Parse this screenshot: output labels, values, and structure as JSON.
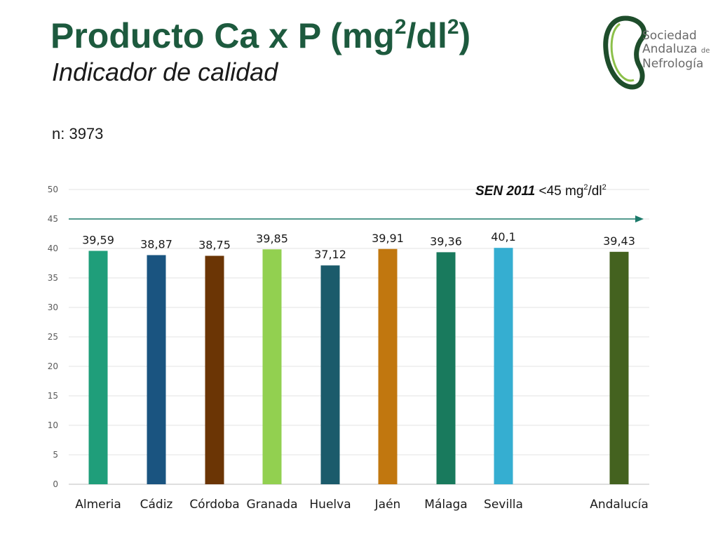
{
  "header": {
    "title_main": "Producto Ca x P (mg",
    "title_sup1": "2",
    "title_mid": "/dl",
    "title_sup2": "2",
    "title_end": ")",
    "subtitle": "Indicador de calidad",
    "n_count": "n: 3973"
  },
  "logo": {
    "line1": "Sociedad",
    "line2": "Andaluza",
    "line2_de": "de",
    "line3": "Nefrología",
    "colors": {
      "dark": "#1e4d2b",
      "light": "#8cc04a"
    }
  },
  "reference": {
    "label_bold": "SEN 2011",
    "label_text": "<45 mg",
    "sup1": "2",
    "mid": "/dl",
    "sup2": "2",
    "value": 45,
    "color": "#1b7a6a"
  },
  "chart_data": {
    "type": "bar",
    "title": "Producto Ca x P (mg2/dl2)",
    "xlabel": "",
    "ylabel": "",
    "ylim": [
      0,
      50
    ],
    "yticks": [
      0,
      5,
      10,
      15,
      20,
      25,
      30,
      35,
      40,
      45,
      50
    ],
    "grid": true,
    "categories": [
      "Almeria",
      "Cádiz",
      "Córdoba",
      "Granada",
      "Huelva",
      "Jaén",
      "Málaga",
      "Sevilla",
      "Andalucía"
    ],
    "values": [
      39.59,
      38.87,
      38.75,
      39.85,
      37.12,
      39.91,
      39.36,
      40.1,
      39.43
    ],
    "value_labels": [
      "39,59",
      "38,87",
      "38,75",
      "39,85",
      "37,12",
      "39,91",
      "39,36",
      "40,1",
      "39,43"
    ],
    "colors": [
      "#1f9e7a",
      "#1a5480",
      "#6b3505",
      "#92d050",
      "#1b5b6b",
      "#c1770f",
      "#197a5d",
      "#35aed1",
      "#44621f"
    ]
  }
}
